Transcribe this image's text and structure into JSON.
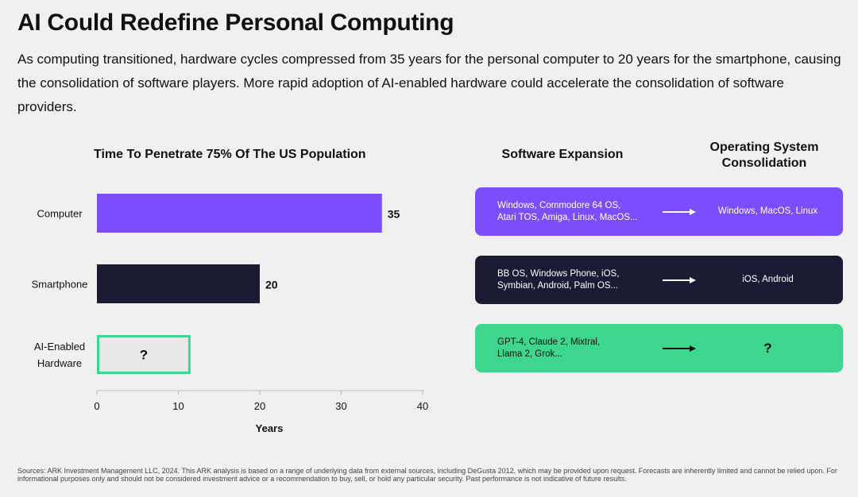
{
  "header": {
    "title": "AI Could Redefine Personal Computing",
    "subtitle": "As computing transitioned, hardware cycles compressed from 35 years for the personal computer to 20 years for the smartphone, causing the consolidation of software players. More rapid adoption of AI-enabled hardware could accelerate the consolidation of software providers."
  },
  "chart_data": {
    "type": "bar",
    "orientation": "horizontal",
    "title": "Time To Penetrate 75% Of The US Population",
    "categories": [
      "Computer",
      "Smartphone",
      "AI-Enabled Hardware"
    ],
    "category_lines": [
      [
        "Computer"
      ],
      [
        "Smartphone"
      ],
      [
        "AI-Enabled",
        "Hardware"
      ]
    ],
    "values": [
      35,
      20,
      11.5
    ],
    "value_labels": [
      "35",
      "20",
      "?"
    ],
    "bar_colors": [
      "#7b4dff",
      "#1d1a35",
      "#e8e8e8"
    ],
    "bar_outline": [
      null,
      null,
      "#3dd68c"
    ],
    "xlim": [
      0,
      40
    ],
    "xticks": [
      0,
      10,
      20,
      30,
      40
    ],
    "xlabel": "Years",
    "ylabel": ""
  },
  "flow": {
    "col_software": "Software Expansion",
    "col_os_line1": "Operating System",
    "col_os_line2": "Consolidation",
    "rows": [
      {
        "from_line1": "Windows, Commodore 64 OS,",
        "from_line2": "Atari TOS, Amiga, Linux, MacOS...",
        "to": "Windows, MacOS, Linux",
        "bg": "#7b4dff",
        "text_color": "#ffffff",
        "arrow_color": "#ffffff"
      },
      {
        "from_line1": "BB OS, Windows Phone, iOS,",
        "from_line2": "Symbian, Android, Palm OS...",
        "to": "iOS, Android",
        "bg": "#1d1a35",
        "text_color": "#ffffff",
        "arrow_color": "#ffffff"
      },
      {
        "from_line1": "GPT-4, Claude 2, Mixtral,",
        "from_line2": "Llama 2, Grok...",
        "to": "?",
        "bg": "#3dd68c",
        "text_color": "#111111",
        "arrow_color": "#111111"
      }
    ]
  },
  "footer": {
    "sources": "Sources: ARK Investment Management LLC, 2024. This ARK analysis is based on a range of underlying data from external sources, including DeGusta 2012, which may be provided upon request. Forecasts are inherently limited and cannot be relied upon. For informational purposes only and should not be considered investment advice or a recommendation to buy, sell, or hold any particular security. Past performance is not indicative of future results."
  }
}
